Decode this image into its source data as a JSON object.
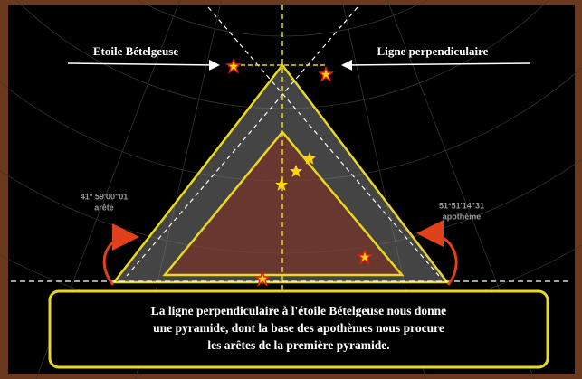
{
  "labels": {
    "left": "Etoile Bételgeuse",
    "right": "Ligne perpendiculaire"
  },
  "angles": {
    "edge_value": "41° 59'00\"01",
    "edge_name": "arête",
    "apothem_value": "51°51'14\"31",
    "apothem_name": "apothème"
  },
  "caption": [
    "La ligne perpendiculaire à l'étoile Bételgeuse nous donne",
    "une pyramide, dont la base des apothèmes nous procure",
    "les arêtes de la première pyramide."
  ]
}
